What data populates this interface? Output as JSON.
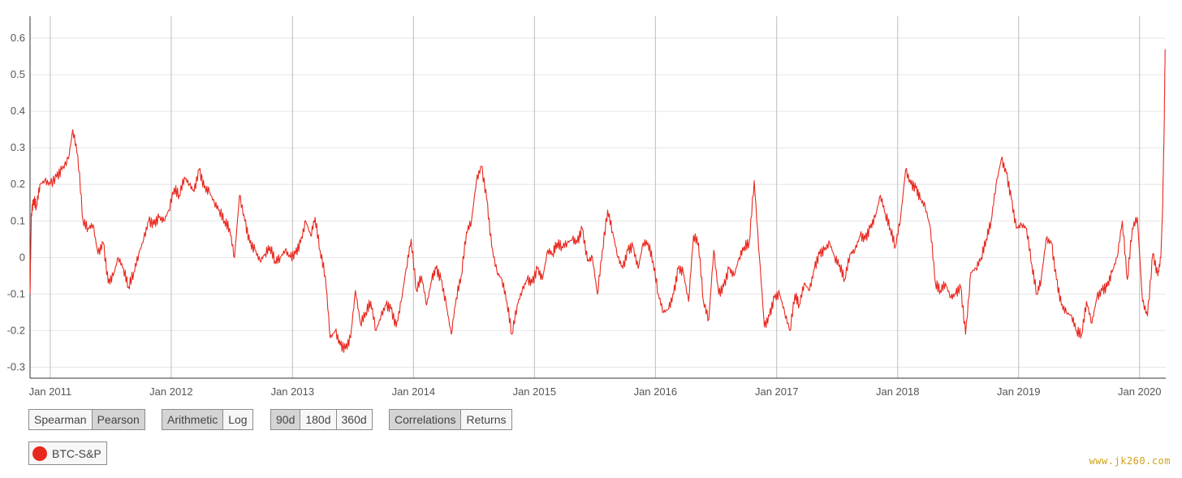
{
  "chart_data": {
    "type": "line",
    "title": "",
    "xlabel": "",
    "ylabel": "",
    "ylim": [
      -0.33,
      0.66
    ],
    "xlim": [
      "2010-11-01",
      "2020-03-20"
    ],
    "grid": {
      "horizontal": true,
      "vertical": true
    },
    "y_ticks": [
      "0.6",
      "0.5",
      "0.4",
      "0.3",
      "0.2",
      "0.1",
      "0",
      "-0.1",
      "-0.2",
      "-0.3"
    ],
    "x_ticks": [
      {
        "date": "2011-01-01",
        "label": "Jan 2011"
      },
      {
        "date": "2012-01-01",
        "label": "Jan 2012"
      },
      {
        "date": "2013-01-01",
        "label": "Jan 2013"
      },
      {
        "date": "2014-01-01",
        "label": "Jan 2014"
      },
      {
        "date": "2015-01-01",
        "label": "Jan 2015"
      },
      {
        "date": "2016-01-01",
        "label": "Jan 2016"
      },
      {
        "date": "2017-01-01",
        "label": "Jan 2017"
      },
      {
        "date": "2018-01-01",
        "label": "Jan 2018"
      },
      {
        "date": "2019-01-01",
        "label": "Jan 2019"
      },
      {
        "date": "2020-01-01",
        "label": "Jan 2020"
      }
    ],
    "series": [
      {
        "name": "BTC-S&P",
        "color": "#e8281e",
        "x": [
          "2010-11-01",
          "2010-11-05",
          "2010-11-12",
          "2010-11-20",
          "2010-12-01",
          "2010-12-15",
          "2011-01-01",
          "2011-01-20",
          "2011-02-05",
          "2011-02-25",
          "2011-03-10",
          "2011-03-25",
          "2011-04-10",
          "2011-04-25",
          "2011-05-10",
          "2011-05-25",
          "2011-06-10",
          "2011-06-25",
          "2011-07-10",
          "2011-07-25",
          "2011-08-10",
          "2011-08-25",
          "2011-09-10",
          "2011-09-25",
          "2011-10-10",
          "2011-10-25",
          "2011-11-10",
          "2011-11-25",
          "2011-12-10",
          "2011-12-25",
          "2012-01-10",
          "2012-01-25",
          "2012-02-10",
          "2012-02-25",
          "2012-03-10",
          "2012-03-25",
          "2012-04-10",
          "2012-04-25",
          "2012-05-10",
          "2012-05-25",
          "2012-06-10",
          "2012-06-25",
          "2012-07-10",
          "2012-07-25",
          "2012-08-10",
          "2012-08-25",
          "2012-09-10",
          "2012-09-25",
          "2012-10-10",
          "2012-10-25",
          "2012-11-10",
          "2012-11-25",
          "2012-12-10",
          "2012-12-25",
          "2013-01-10",
          "2013-01-25",
          "2013-02-10",
          "2013-02-25",
          "2013-03-10",
          "2013-03-25",
          "2013-04-10",
          "2013-04-25",
          "2013-05-10",
          "2013-05-25",
          "2013-06-10",
          "2013-06-25",
          "2013-07-10",
          "2013-07-25",
          "2013-08-10",
          "2013-08-25",
          "2013-09-10",
          "2013-09-25",
          "2013-10-10",
          "2013-10-25",
          "2013-11-10",
          "2013-11-25",
          "2013-12-10",
          "2013-12-25",
          "2014-01-10",
          "2014-01-25",
          "2014-02-10",
          "2014-02-25",
          "2014-03-10",
          "2014-03-25",
          "2014-04-10",
          "2014-04-25",
          "2014-05-10",
          "2014-05-25",
          "2014-06-10",
          "2014-06-25",
          "2014-07-10",
          "2014-07-25",
          "2014-08-10",
          "2014-08-25",
          "2014-09-10",
          "2014-09-25",
          "2014-10-10",
          "2014-10-25",
          "2014-11-10",
          "2014-11-25",
          "2014-12-10",
          "2014-12-25",
          "2015-01-10",
          "2015-01-25",
          "2015-02-10",
          "2015-02-25",
          "2015-03-10",
          "2015-03-25",
          "2015-04-10",
          "2015-04-25",
          "2015-05-10",
          "2015-05-25",
          "2015-06-10",
          "2015-06-25",
          "2015-07-10",
          "2015-07-25",
          "2015-08-10",
          "2015-08-25",
          "2015-09-10",
          "2015-09-25",
          "2015-10-10",
          "2015-10-25",
          "2015-11-10",
          "2015-11-25",
          "2015-12-10",
          "2015-12-25",
          "2016-01-10",
          "2016-01-25",
          "2016-02-10",
          "2016-02-25",
          "2016-03-10",
          "2016-03-25",
          "2016-04-10",
          "2016-04-25",
          "2016-05-10",
          "2016-05-25",
          "2016-06-10",
          "2016-06-25",
          "2016-07-10",
          "2016-07-25",
          "2016-08-10",
          "2016-08-25",
          "2016-09-10",
          "2016-09-25",
          "2016-10-10",
          "2016-10-25",
          "2016-11-10",
          "2016-11-25",
          "2016-12-10",
          "2016-12-25",
          "2017-01-10",
          "2017-01-25",
          "2017-02-10",
          "2017-02-25",
          "2017-03-10",
          "2017-03-25",
          "2017-04-10",
          "2017-04-25",
          "2017-05-10",
          "2017-05-25",
          "2017-06-10",
          "2017-06-25",
          "2017-07-10",
          "2017-07-25",
          "2017-08-10",
          "2017-08-25",
          "2017-09-10",
          "2017-09-25",
          "2017-10-10",
          "2017-10-25",
          "2017-11-10",
          "2017-11-25",
          "2017-12-10",
          "2017-12-25",
          "2018-01-10",
          "2018-01-25",
          "2018-02-10",
          "2018-02-25",
          "2018-03-10",
          "2018-03-25",
          "2018-04-10",
          "2018-04-25",
          "2018-05-10",
          "2018-05-25",
          "2018-06-10",
          "2018-06-25",
          "2018-07-10",
          "2018-07-25",
          "2018-08-10",
          "2018-08-25",
          "2018-09-10",
          "2018-09-25",
          "2018-10-10",
          "2018-10-25",
          "2018-11-10",
          "2018-11-25",
          "2018-12-10",
          "2018-12-25",
          "2019-01-10",
          "2019-01-25",
          "2019-02-10",
          "2019-02-25",
          "2019-03-10",
          "2019-03-25",
          "2019-04-10",
          "2019-04-25",
          "2019-05-10",
          "2019-05-25",
          "2019-06-10",
          "2019-06-25",
          "2019-07-10",
          "2019-07-25",
          "2019-08-10",
          "2019-08-25",
          "2019-09-10",
          "2019-09-25",
          "2019-10-10",
          "2019-10-25",
          "2019-11-10",
          "2019-11-25",
          "2019-12-10",
          "2019-12-25",
          "2020-01-10",
          "2020-01-25",
          "2020-02-10",
          "2020-02-25",
          "2020-03-05",
          "2020-03-10",
          "2020-03-15",
          "2020-03-18"
        ],
        "values": [
          -0.1,
          0.12,
          0.16,
          0.14,
          0.2,
          0.21,
          0.2,
          0.22,
          0.24,
          0.27,
          0.35,
          0.28,
          0.1,
          0.08,
          0.09,
          0.01,
          0.04,
          -0.07,
          -0.05,
          0.0,
          -0.03,
          -0.08,
          -0.04,
          0.01,
          0.05,
          0.1,
          0.09,
          0.11,
          0.1,
          0.13,
          0.19,
          0.17,
          0.22,
          0.2,
          0.18,
          0.24,
          0.19,
          0.18,
          0.15,
          0.13,
          0.1,
          0.08,
          0.0,
          0.17,
          0.1,
          0.04,
          0.02,
          -0.01,
          0.01,
          0.03,
          -0.01,
          0.0,
          0.02,
          0.0,
          0.01,
          0.04,
          0.1,
          0.06,
          0.11,
          0.02,
          -0.05,
          -0.22,
          -0.2,
          -0.24,
          -0.25,
          -0.22,
          -0.09,
          -0.18,
          -0.15,
          -0.12,
          -0.2,
          -0.16,
          -0.13,
          -0.14,
          -0.19,
          -0.12,
          -0.03,
          0.05,
          -0.09,
          -0.05,
          -0.13,
          -0.06,
          -0.03,
          -0.06,
          -0.13,
          -0.21,
          -0.11,
          -0.05,
          0.07,
          0.1,
          0.21,
          0.25,
          0.16,
          0.03,
          -0.04,
          -0.06,
          -0.12,
          -0.21,
          -0.13,
          -0.09,
          -0.06,
          -0.07,
          -0.03,
          -0.06,
          0.02,
          0.01,
          0.04,
          0.03,
          0.04,
          0.05,
          0.04,
          0.08,
          -0.01,
          0.0,
          -0.1,
          0.02,
          0.13,
          0.07,
          0.0,
          -0.03,
          0.02,
          0.03,
          -0.03,
          0.04,
          0.04,
          -0.01,
          -0.1,
          -0.15,
          -0.14,
          -0.1,
          -0.03,
          -0.04,
          -0.12,
          0.06,
          0.04,
          -0.12,
          -0.17,
          0.02,
          -0.1,
          -0.08,
          -0.03,
          -0.05,
          0.0,
          0.03,
          0.04,
          0.21,
          0.0,
          -0.19,
          -0.16,
          -0.11,
          -0.1,
          -0.15,
          -0.2,
          -0.1,
          -0.13,
          -0.07,
          -0.09,
          -0.03,
          0.01,
          0.02,
          0.04,
          0.0,
          -0.02,
          -0.06,
          0.01,
          0.02,
          0.06,
          0.05,
          0.08,
          0.11,
          0.17,
          0.12,
          0.08,
          0.03,
          0.11,
          0.24,
          0.2,
          0.19,
          0.16,
          0.14,
          0.08,
          -0.07,
          -0.09,
          -0.07,
          -0.11,
          -0.1,
          -0.08,
          -0.21,
          -0.04,
          -0.03,
          0.0,
          0.05,
          0.1,
          0.2,
          0.27,
          0.23,
          0.16,
          0.08,
          0.09,
          0.08,
          -0.02,
          -0.1,
          -0.06,
          0.05,
          0.04,
          -0.06,
          -0.13,
          -0.15,
          -0.16,
          -0.2,
          -0.21,
          -0.12,
          -0.18,
          -0.11,
          -0.09,
          -0.08,
          -0.04,
          0.0,
          0.1,
          -0.06,
          0.08,
          0.11,
          -0.12,
          -0.16,
          0.01,
          -0.05,
          0.0,
          0.12,
          0.35,
          0.57
        ]
      }
    ]
  },
  "controls": {
    "method_group": [
      {
        "label": "Spearman",
        "active": false
      },
      {
        "label": "Pearson",
        "active": true
      }
    ],
    "scale_group": [
      {
        "label": "Arithmetic",
        "active": true
      },
      {
        "label": "Log",
        "active": false
      }
    ],
    "window_group": [
      {
        "label": "90d",
        "active": true
      },
      {
        "label": "180d",
        "active": false
      },
      {
        "label": "360d",
        "active": false
      }
    ],
    "view_group": [
      {
        "label": "Correlations",
        "active": true
      },
      {
        "label": "Returns",
        "active": false
      }
    ]
  },
  "legend": {
    "label": "BTC-S&P",
    "color": "#e8281e"
  },
  "watermark": "www.jk260.com"
}
